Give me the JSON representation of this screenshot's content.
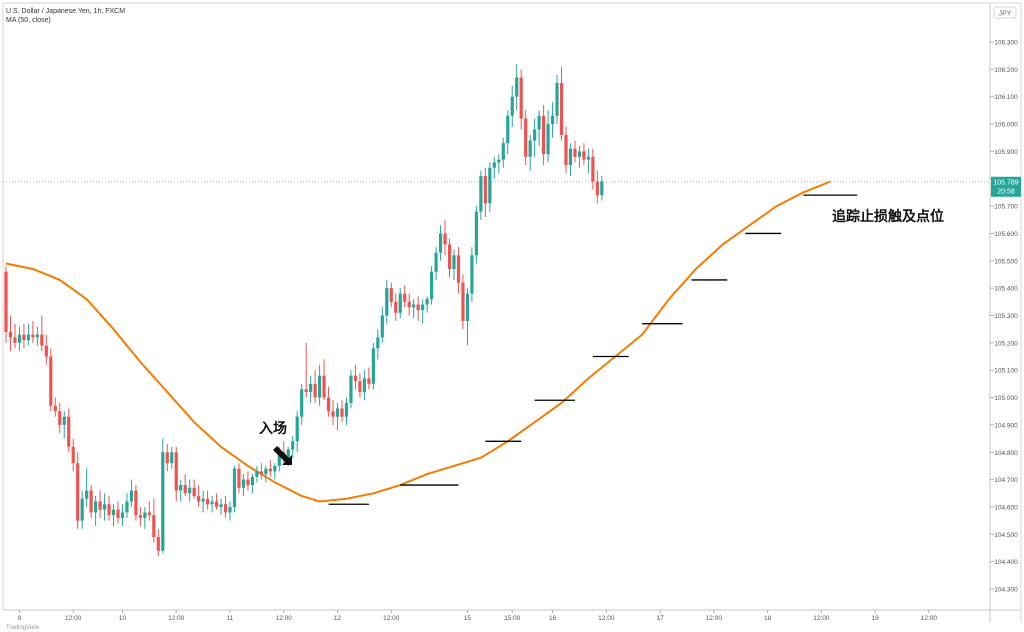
{
  "header": {
    "symbol_title": "U.S. Dollar / Japanese Yen, 1h, FXCM",
    "indicator_label": "MA (50, close)"
  },
  "brand": "TradingView",
  "annotations": {
    "entry_label": "入场",
    "trailing_stop_label": "追踪止损触及点位"
  },
  "chart_data": {
    "type": "candlestick",
    "symbol": "USDJPY",
    "timeframe": "1h",
    "currency_badge": "JPY",
    "ylim": [
      104.34,
      106.36
    ],
    "price_ticks": [
      "106.300",
      "106.200",
      "106.100",
      "106.000",
      "105.900",
      "105.800",
      "105.700",
      "105.600",
      "105.500",
      "105.400",
      "105.300",
      "105.200",
      "105.100",
      "105.000",
      "104.900",
      "104.800",
      "104.700",
      "104.600",
      "104.500",
      "104.400",
      "104.300"
    ],
    "time_labels": [
      {
        "i": 3,
        "label": "9"
      },
      {
        "i": 15,
        "label": "12:00"
      },
      {
        "i": 26,
        "label": "10"
      },
      {
        "i": 38,
        "label": "12:00"
      },
      {
        "i": 50,
        "label": "11"
      },
      {
        "i": 62,
        "label": "12:00"
      },
      {
        "i": 74,
        "label": "12"
      },
      {
        "i": 86,
        "label": "12:00"
      },
      {
        "i": 103,
        "label": "15"
      },
      {
        "i": 113,
        "label": "15:00"
      },
      {
        "i": 122,
        "label": "16"
      },
      {
        "i": 134,
        "label": "12:00"
      },
      {
        "i": 146,
        "label": "17"
      },
      {
        "i": 158,
        "label": "12:00"
      },
      {
        "i": 170,
        "label": "18"
      },
      {
        "i": 182,
        "label": "12:00"
      },
      {
        "i": 194,
        "label": "19"
      },
      {
        "i": 206,
        "label": "12:00"
      }
    ],
    "last_price": "105.789",
    "countdown": "20:58",
    "colors": {
      "up": "#26a69a",
      "down": "#ef5350",
      "ma": "#f57c00",
      "stop_line": "#000000"
    },
    "candles": [
      [
        105.46,
        105.48,
        105.2,
        105.24
      ],
      [
        105.24,
        105.3,
        105.17,
        105.22
      ],
      [
        105.22,
        105.27,
        105.18,
        105.2
      ],
      [
        105.2,
        105.26,
        105.17,
        105.23
      ],
      [
        105.23,
        105.27,
        105.18,
        105.21
      ],
      [
        105.21,
        105.27,
        105.19,
        105.23
      ],
      [
        105.23,
        105.28,
        105.2,
        105.22
      ],
      [
        105.22,
        105.26,
        105.19,
        105.23
      ],
      [
        105.23,
        105.3,
        105.17,
        105.19
      ],
      [
        105.19,
        105.23,
        105.12,
        105.15
      ],
      [
        105.15,
        105.18,
        104.95,
        104.97
      ],
      [
        104.97,
        105.0,
        104.93,
        104.95
      ],
      [
        104.95,
        104.98,
        104.87,
        104.9
      ],
      [
        104.9,
        104.95,
        104.85,
        104.93
      ],
      [
        104.93,
        104.96,
        104.8,
        104.82
      ],
      [
        104.82,
        104.85,
        104.73,
        104.76
      ],
      [
        104.76,
        104.8,
        104.52,
        104.55
      ],
      [
        104.55,
        104.66,
        104.52,
        104.63
      ],
      [
        104.63,
        104.74,
        104.6,
        104.66
      ],
      [
        104.66,
        104.68,
        104.56,
        104.58
      ],
      [
        104.58,
        104.64,
        104.53,
        104.62
      ],
      [
        104.62,
        104.66,
        104.56,
        104.59
      ],
      [
        104.59,
        104.65,
        104.55,
        104.61
      ],
      [
        104.61,
        104.64,
        104.55,
        104.57
      ],
      [
        104.57,
        104.61,
        104.53,
        104.59
      ],
      [
        104.59,
        104.62,
        104.54,
        104.56
      ],
      [
        104.56,
        104.61,
        104.53,
        104.58
      ],
      [
        104.58,
        104.65,
        104.56,
        104.62
      ],
      [
        104.62,
        104.7,
        104.6,
        104.66
      ],
      [
        104.66,
        104.68,
        104.55,
        104.57
      ],
      [
        104.57,
        104.6,
        104.53,
        104.56
      ],
      [
        104.56,
        104.6,
        104.52,
        104.58
      ],
      [
        104.58,
        104.62,
        104.55,
        104.57
      ],
      [
        104.57,
        104.63,
        104.47,
        104.49
      ],
      [
        104.49,
        104.52,
        104.42,
        104.44
      ],
      [
        104.44,
        104.85,
        104.43,
        104.8
      ],
      [
        104.8,
        104.83,
        104.73,
        104.76
      ],
      [
        104.76,
        104.82,
        104.74,
        104.8
      ],
      [
        104.8,
        104.82,
        104.62,
        104.66
      ],
      [
        104.66,
        104.7,
        104.62,
        104.68
      ],
      [
        104.68,
        104.72,
        104.64,
        104.65
      ],
      [
        104.65,
        104.7,
        104.62,
        104.67
      ],
      [
        104.67,
        104.7,
        104.63,
        104.64
      ],
      [
        104.64,
        104.68,
        104.6,
        104.62
      ],
      [
        104.62,
        104.66,
        104.58,
        104.63
      ],
      [
        104.63,
        104.66,
        104.59,
        104.61
      ],
      [
        104.61,
        104.64,
        104.58,
        104.62
      ],
      [
        104.62,
        104.65,
        104.59,
        104.6
      ],
      [
        104.6,
        104.63,
        104.57,
        104.61
      ],
      [
        104.61,
        104.64,
        104.56,
        104.58
      ],
      [
        104.58,
        104.62,
        104.55,
        104.6
      ],
      [
        104.6,
        104.75,
        104.58,
        104.74
      ],
      [
        104.74,
        104.76,
        104.65,
        104.67
      ],
      [
        104.67,
        104.72,
        104.64,
        104.7
      ],
      [
        104.7,
        104.73,
        104.66,
        104.68
      ],
      [
        104.68,
        104.72,
        104.65,
        104.71
      ],
      [
        104.71,
        104.75,
        104.69,
        104.73
      ],
      [
        104.73,
        104.76,
        104.7,
        104.72
      ],
      [
        104.72,
        104.75,
        104.69,
        104.74
      ],
      [
        104.74,
        104.77,
        104.71,
        104.73
      ],
      [
        104.73,
        104.76,
        104.7,
        104.75
      ],
      [
        104.75,
        104.82,
        104.73,
        104.8
      ],
      [
        104.8,
        104.84,
        104.76,
        104.78
      ],
      [
        104.78,
        104.82,
        104.75,
        104.81
      ],
      [
        104.81,
        104.86,
        104.78,
        104.84
      ],
      [
        104.84,
        104.95,
        104.8,
        104.93
      ],
      [
        104.93,
        105.05,
        104.9,
        105.03
      ],
      [
        105.03,
        105.2,
        105.0,
        105.02
      ],
      [
        105.02,
        105.08,
        104.98,
        105.05
      ],
      [
        105.05,
        105.1,
        104.98,
        105.0
      ],
      [
        105.0,
        105.12,
        104.97,
        105.08
      ],
      [
        105.08,
        105.14,
        104.99,
        105.0
      ],
      [
        105.0,
        105.04,
        104.93,
        104.95
      ],
      [
        104.95,
        104.99,
        104.9,
        104.93
      ],
      [
        104.93,
        104.98,
        104.88,
        104.96
      ],
      [
        104.96,
        104.99,
        104.91,
        104.93
      ],
      [
        104.93,
        105.0,
        104.9,
        104.98
      ],
      [
        104.98,
        105.1,
        104.96,
        105.08
      ],
      [
        105.08,
        105.12,
        105.03,
        105.06
      ],
      [
        105.06,
        105.09,
        105.0,
        105.02
      ],
      [
        105.02,
        105.1,
        104.99,
        105.07
      ],
      [
        105.07,
        105.11,
        105.03,
        105.05
      ],
      [
        105.05,
        105.2,
        105.03,
        105.18
      ],
      [
        105.18,
        105.25,
        105.14,
        105.22
      ],
      [
        105.22,
        105.33,
        105.2,
        105.3
      ],
      [
        105.3,
        105.43,
        105.27,
        105.4
      ],
      [
        105.4,
        105.42,
        105.33,
        105.35
      ],
      [
        105.35,
        105.38,
        105.28,
        105.31
      ],
      [
        105.31,
        105.4,
        105.29,
        105.38
      ],
      [
        105.38,
        105.41,
        105.33,
        105.35
      ],
      [
        105.35,
        105.38,
        105.3,
        105.33
      ],
      [
        105.33,
        105.36,
        105.29,
        105.34
      ],
      [
        105.34,
        105.37,
        105.28,
        105.32
      ],
      [
        105.32,
        105.36,
        105.27,
        105.34
      ],
      [
        105.34,
        105.37,
        105.31,
        105.36
      ],
      [
        105.36,
        105.48,
        105.34,
        105.46
      ],
      [
        105.46,
        105.55,
        105.43,
        105.53
      ],
      [
        105.53,
        105.63,
        105.5,
        105.6
      ],
      [
        105.6,
        105.65,
        105.52,
        105.56
      ],
      [
        105.56,
        105.58,
        105.44,
        105.47
      ],
      [
        105.47,
        105.54,
        105.43,
        105.52
      ],
      [
        105.52,
        105.55,
        105.38,
        105.42
      ],
      [
        105.42,
        105.45,
        105.25,
        105.28
      ],
      [
        105.28,
        105.4,
        105.19,
        105.38
      ],
      [
        105.38,
        105.55,
        105.35,
        105.52
      ],
      [
        105.52,
        105.7,
        105.49,
        105.68
      ],
      [
        105.68,
        105.83,
        105.65,
        105.81
      ],
      [
        105.81,
        105.84,
        105.66,
        105.71
      ],
      [
        105.71,
        105.86,
        105.68,
        105.84
      ],
      [
        105.84,
        105.88,
        105.8,
        105.86
      ],
      [
        105.86,
        105.89,
        105.82,
        105.87
      ],
      [
        105.87,
        105.95,
        105.84,
        105.93
      ],
      [
        105.93,
        106.05,
        105.89,
        106.03
      ],
      [
        106.03,
        106.14,
        105.99,
        106.1
      ],
      [
        106.1,
        106.22,
        106.05,
        106.17
      ],
      [
        106.17,
        106.2,
        105.98,
        106.02
      ],
      [
        106.02,
        106.05,
        105.85,
        105.88
      ],
      [
        105.88,
        105.96,
        105.83,
        105.94
      ],
      [
        105.94,
        106.02,
        105.88,
        105.98
      ],
      [
        105.98,
        106.05,
        105.92,
        106.03
      ],
      [
        106.03,
        106.07,
        105.85,
        105.89
      ],
      [
        105.89,
        106.05,
        105.86,
        106.0
      ],
      [
        106.0,
        106.08,
        105.95,
        106.03
      ],
      [
        106.03,
        106.18,
        106.0,
        106.15
      ],
      [
        106.15,
        106.21,
        105.94,
        105.96
      ],
      [
        105.96,
        105.99,
        105.82,
        105.85
      ],
      [
        105.85,
        105.93,
        105.81,
        105.91
      ],
      [
        105.91,
        105.94,
        105.86,
        105.88
      ],
      [
        105.88,
        105.92,
        105.84,
        105.9
      ],
      [
        105.9,
        105.93,
        105.85,
        105.87
      ],
      [
        105.87,
        105.91,
        105.82,
        105.88
      ],
      [
        105.88,
        105.91,
        105.76,
        105.79
      ],
      [
        105.79,
        105.83,
        105.71,
        105.74
      ],
      [
        105.74,
        105.81,
        105.72,
        105.79
      ]
    ],
    "ma_label": "MA (50, close)",
    "ma": [
      [
        0,
        105.49
      ],
      [
        6,
        105.47
      ],
      [
        12,
        105.43
      ],
      [
        18,
        105.36
      ],
      [
        24,
        105.25
      ],
      [
        30,
        105.13
      ],
      [
        36,
        105.02
      ],
      [
        42,
        104.91
      ],
      [
        48,
        104.82
      ],
      [
        54,
        104.75
      ],
      [
        60,
        104.69
      ],
      [
        66,
        104.64
      ],
      [
        70,
        104.62
      ],
      [
        76,
        104.63
      ],
      [
        82,
        104.65
      ],
      [
        88,
        104.68
      ],
      [
        94,
        104.72
      ],
      [
        100,
        104.75
      ],
      [
        106,
        104.78
      ],
      [
        112,
        104.84
      ],
      [
        118,
        104.91
      ],
      [
        124,
        104.98
      ],
      [
        130,
        105.07
      ],
      [
        136,
        105.15
      ],
      [
        142,
        105.23
      ],
      [
        148,
        105.36
      ],
      [
        154,
        105.47
      ],
      [
        160,
        105.56
      ],
      [
        166,
        105.63
      ],
      [
        172,
        105.7
      ],
      [
        178,
        105.75
      ],
      [
        184,
        105.79
      ]
    ],
    "stop_levels": [
      [
        72,
        81,
        104.61
      ],
      [
        88,
        101,
        104.68
      ],
      [
        107,
        115,
        104.84
      ],
      [
        118,
        127,
        104.99
      ],
      [
        131,
        139,
        105.15
      ],
      [
        142,
        151,
        105.27
      ],
      [
        153,
        161,
        105.43
      ],
      [
        165,
        173,
        105.6
      ],
      [
        178,
        190,
        105.74
      ]
    ]
  }
}
